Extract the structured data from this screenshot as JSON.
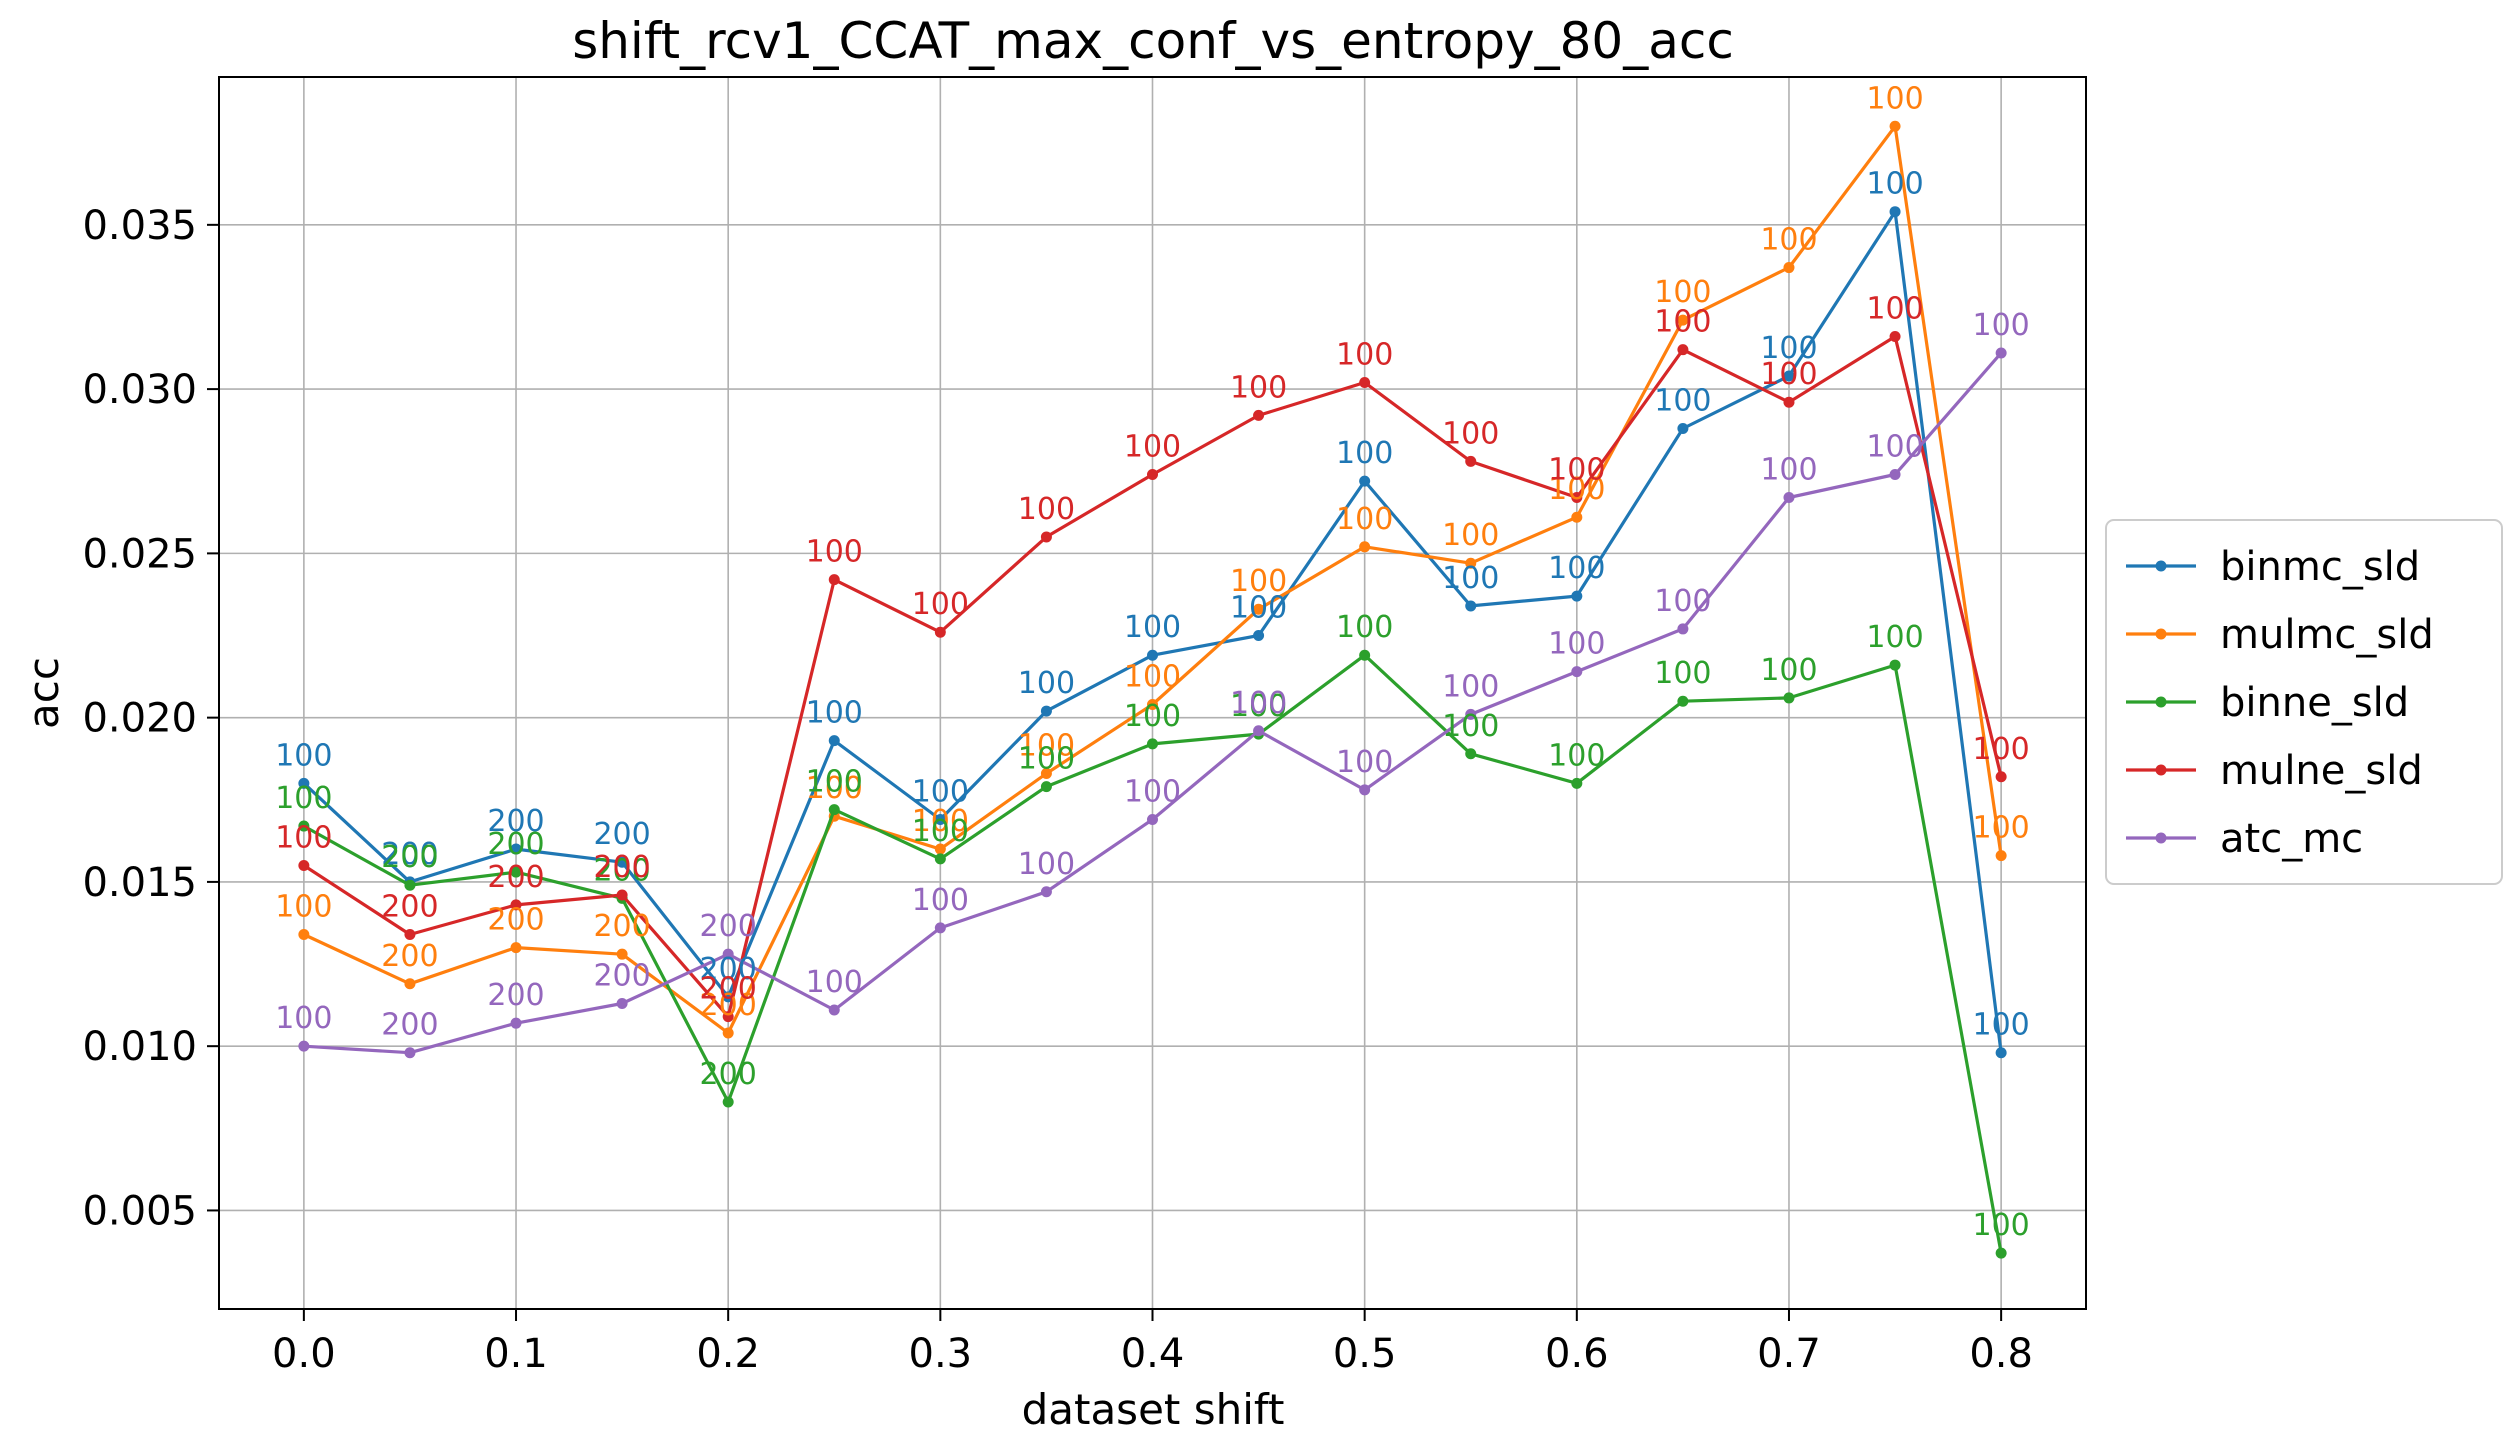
{
  "chart_data": {
    "type": "line",
    "title": "shift_rcv1_CCAT_max_conf_vs_entropy_80_acc",
    "xlabel": "dataset shift",
    "ylabel": "acc",
    "x": [
      0.0,
      0.05,
      0.1,
      0.15,
      0.2,
      0.25,
      0.3,
      0.35,
      0.4,
      0.45,
      0.5,
      0.55,
      0.6,
      0.65,
      0.7,
      0.75,
      0.8
    ],
    "xlim": [
      -0.04,
      0.84
    ],
    "ylim": [
      0.002,
      0.0395
    ],
    "xticks": [
      0.0,
      0.1,
      0.2,
      0.3,
      0.4,
      0.5,
      0.6,
      0.7,
      0.8
    ],
    "xtick_labels": [
      "0.0",
      "0.1",
      "0.2",
      "0.3",
      "0.4",
      "0.5",
      "0.6",
      "0.7",
      "0.8"
    ],
    "yticks": [
      0.005,
      0.01,
      0.015,
      0.02,
      0.025,
      0.03,
      0.035
    ],
    "ytick_labels": [
      "0.005",
      "0.010",
      "0.015",
      "0.020",
      "0.025",
      "0.030",
      "0.035"
    ],
    "grid": true,
    "legend_position": "right-outside",
    "series": [
      {
        "name": "binmc_sld",
        "color": "#1f77b4",
        "values": [
          0.018,
          0.015,
          0.016,
          0.0156,
          0.0115,
          0.0193,
          0.0169,
          0.0202,
          0.0219,
          0.0225,
          0.0272,
          0.0234,
          0.0237,
          0.0288,
          0.0304,
          0.0354,
          0.0098
        ],
        "labels": [
          "100",
          "200",
          "200",
          "200",
          "200",
          "100",
          "100",
          "100",
          "100",
          "100",
          "100",
          "100",
          "100",
          "100",
          "100",
          "100",
          "100"
        ]
      },
      {
        "name": "mulmc_sld",
        "color": "#ff7f0e",
        "values": [
          0.0134,
          0.0119,
          0.013,
          0.0128,
          0.0104,
          0.017,
          0.016,
          0.0183,
          0.0204,
          0.0233,
          0.0252,
          0.0247,
          0.0261,
          0.0321,
          0.0337,
          0.038,
          0.0158
        ],
        "labels": [
          "100",
          "200",
          "200",
          "200",
          "200",
          "100",
          "100",
          "100",
          "100",
          "100",
          "100",
          "100",
          "100",
          "100",
          "100",
          "100",
          "100"
        ]
      },
      {
        "name": "binne_sld",
        "color": "#2ca02c",
        "values": [
          0.0167,
          0.0149,
          0.0153,
          0.0145,
          0.0083,
          0.0172,
          0.0157,
          0.0179,
          0.0192,
          0.0195,
          0.0219,
          0.0189,
          0.018,
          0.0205,
          0.0206,
          0.0216,
          0.0037
        ],
        "labels": [
          "100",
          "200",
          "200",
          "200",
          "200",
          "100",
          "100",
          "100",
          "100",
          "100",
          "100",
          "100",
          "100",
          "100",
          "100",
          "100",
          "100"
        ]
      },
      {
        "name": "mulne_sld",
        "color": "#d62728",
        "values": [
          0.0155,
          0.0134,
          0.0143,
          0.0146,
          0.0109,
          0.0242,
          0.0226,
          0.0255,
          0.0274,
          0.0292,
          0.0302,
          0.0278,
          0.0267,
          0.0312,
          0.0296,
          0.0316,
          0.0182
        ],
        "labels": [
          "100",
          "200",
          "200",
          "200",
          "200",
          "100",
          "100",
          "100",
          "100",
          "100",
          "100",
          "100",
          "100",
          "100",
          "100",
          "100",
          "100"
        ]
      },
      {
        "name": "atc_mc",
        "color": "#9467bd",
        "values": [
          0.01,
          0.0098,
          0.0107,
          0.0113,
          0.0128,
          0.0111,
          0.0136,
          0.0147,
          0.0169,
          0.0196,
          0.0178,
          0.0201,
          0.0214,
          0.0227,
          0.0267,
          0.0274,
          0.0311
        ],
        "labels": [
          "100",
          "200",
          "200",
          "200",
          "200",
          "100",
          "100",
          "100",
          "100",
          "100",
          "100",
          "100",
          "100",
          "100",
          "100",
          "100",
          "100"
        ]
      }
    ]
  }
}
